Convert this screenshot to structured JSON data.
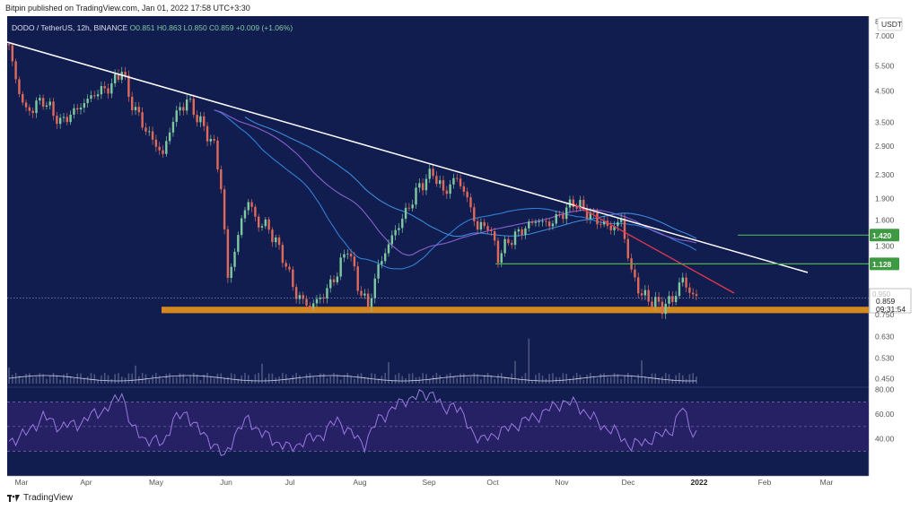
{
  "header": {
    "published": "Bitpin published on TradingView.com, Jan 01, 2022 17:58 UTC+3:30"
  },
  "footer": {
    "brand": "TradingView"
  },
  "symbol_line": {
    "symbol": "DODO / TetherUS, 12h, BINANCE",
    "o": "O0.851",
    "h": "H0.863",
    "l": "L0.850",
    "c": "C0.859",
    "change": "+0.009 (+1.06%)"
  },
  "colors": {
    "panel_bg": "#121d4f",
    "candle_up": "#7fc9a0",
    "candle_down": "#e06a5a",
    "trendline": "#ffffff",
    "red_line": "#e0384e",
    "support_zone": "#d4891f",
    "hline": "#4caf50",
    "ma_fast": "#2f7fd6",
    "ma_mid": "#8a5fd0",
    "ma_slow": "#3a8ad8",
    "rsi": "#9a79e0"
  },
  "chart_data": {
    "type": "candlestick",
    "title": "DODO / TetherUS, 12h, BINANCE",
    "currency": "USDT",
    "y_scale": "log",
    "ylim": [
      0.42,
      8.2
    ],
    "yticks": [
      "7.000",
      "5.500",
      "4.500",
      "3.500",
      "2.900",
      "2.300",
      "1.900",
      "1.600",
      "1.300",
      "0.750",
      "0.630",
      "0.530",
      "0.450"
    ],
    "y_top_tick": "8",
    "ylabel": "USDT",
    "xticks": [
      "Mar",
      "Apr",
      "May",
      "Jun",
      "Jul",
      "Aug",
      "Sep",
      "Oct",
      "Nov",
      "Dec",
      "2022",
      "Feb",
      "Mar"
    ],
    "price_anchors": [
      [
        0,
        6.5
      ],
      [
        2,
        4.9
      ],
      [
        5,
        3.8
      ],
      [
        10,
        4.2
      ],
      [
        15,
        3.5
      ],
      [
        20,
        3.9
      ],
      [
        25,
        4.4
      ],
      [
        30,
        4.7
      ],
      [
        33,
        5.4
      ],
      [
        35,
        4.3
      ],
      [
        40,
        3.3
      ],
      [
        45,
        2.7
      ],
      [
        48,
        3.6
      ],
      [
        52,
        4.2
      ],
      [
        56,
        3.5
      ],
      [
        60,
        2.9
      ],
      [
        62,
        2.1
      ],
      [
        64,
        1.0
      ],
      [
        66,
        1.25
      ],
      [
        68,
        1.6
      ],
      [
        70,
        1.9
      ],
      [
        72,
        1.6
      ],
      [
        76,
        1.5
      ],
      [
        80,
        1.2
      ],
      [
        84,
        0.88
      ],
      [
        88,
        0.8
      ],
      [
        92,
        0.88
      ],
      [
        96,
        1.05
      ],
      [
        99,
        1.3
      ],
      [
        102,
        0.95
      ],
      [
        105,
        0.8
      ],
      [
        108,
        1.1
      ],
      [
        112,
        1.4
      ],
      [
        116,
        1.7
      ],
      [
        120,
        2.1
      ],
      [
        124,
        2.35
      ],
      [
        127,
        2.0
      ],
      [
        131,
        2.25
      ],
      [
        134,
        1.9
      ],
      [
        137,
        1.5
      ],
      [
        140,
        1.55
      ],
      [
        143,
        1.2
      ],
      [
        146,
        1.35
      ],
      [
        150,
        1.48
      ],
      [
        154,
        1.6
      ],
      [
        158,
        1.55
      ],
      [
        162,
        1.7
      ],
      [
        165,
        1.85
      ],
      [
        168,
        1.75
      ],
      [
        172,
        1.6
      ],
      [
        176,
        1.5
      ],
      [
        179,
        1.6
      ],
      [
        182,
        1.05
      ],
      [
        185,
        0.88
      ],
      [
        188,
        0.84
      ],
      [
        191,
        0.8
      ],
      [
        194,
        0.85
      ],
      [
        197,
        1.0
      ],
      [
        199,
        0.9
      ],
      [
        201,
        0.86
      ]
    ],
    "candle_count": 202,
    "last_price": "0.859",
    "countdown": "09:31:54",
    "horizontal_levels": [
      {
        "label": "1.420",
        "value": 1.42
      },
      {
        "label": "1.128",
        "value": 1.128
      }
    ],
    "partial_label": "0.950",
    "support_zone": [
      0.76,
      0.8
    ],
    "volume": {
      "max_bar": 1.0
    },
    "rsi": {
      "yticks": [
        "80.00",
        "60.00",
        "40.00"
      ],
      "ylim": [
        20,
        82
      ],
      "band": [
        30,
        70
      ],
      "anchors": [
        [
          0,
          38
        ],
        [
          5,
          44
        ],
        [
          10,
          58
        ],
        [
          15,
          50
        ],
        [
          20,
          52
        ],
        [
          25,
          60
        ],
        [
          30,
          67
        ],
        [
          33,
          78
        ],
        [
          36,
          48
        ],
        [
          40,
          40
        ],
        [
          45,
          36
        ],
        [
          48,
          55
        ],
        [
          52,
          61
        ],
        [
          56,
          45
        ],
        [
          60,
          36
        ],
        [
          63,
          24
        ],
        [
          66,
          44
        ],
        [
          70,
          56
        ],
        [
          74,
          44
        ],
        [
          78,
          38
        ],
        [
          82,
          32
        ],
        [
          86,
          38
        ],
        [
          92,
          44
        ],
        [
          96,
          56
        ],
        [
          100,
          44
        ],
        [
          104,
          36
        ],
        [
          108,
          56
        ],
        [
          112,
          64
        ],
        [
          116,
          72
        ],
        [
          120,
          75
        ],
        [
          124,
          78
        ],
        [
          127,
          62
        ],
        [
          130,
          70
        ],
        [
          134,
          52
        ],
        [
          138,
          38
        ],
        [
          142,
          44
        ],
        [
          146,
          48
        ],
        [
          150,
          54
        ],
        [
          154,
          58
        ],
        [
          158,
          64
        ],
        [
          162,
          70
        ],
        [
          166,
          68
        ],
        [
          170,
          58
        ],
        [
          174,
          50
        ],
        [
          178,
          44
        ],
        [
          182,
          34
        ],
        [
          186,
          38
        ],
        [
          190,
          42
        ],
        [
          194,
          48
        ],
        [
          197,
          66
        ],
        [
          199,
          50
        ],
        [
          201,
          44
        ]
      ]
    }
  }
}
